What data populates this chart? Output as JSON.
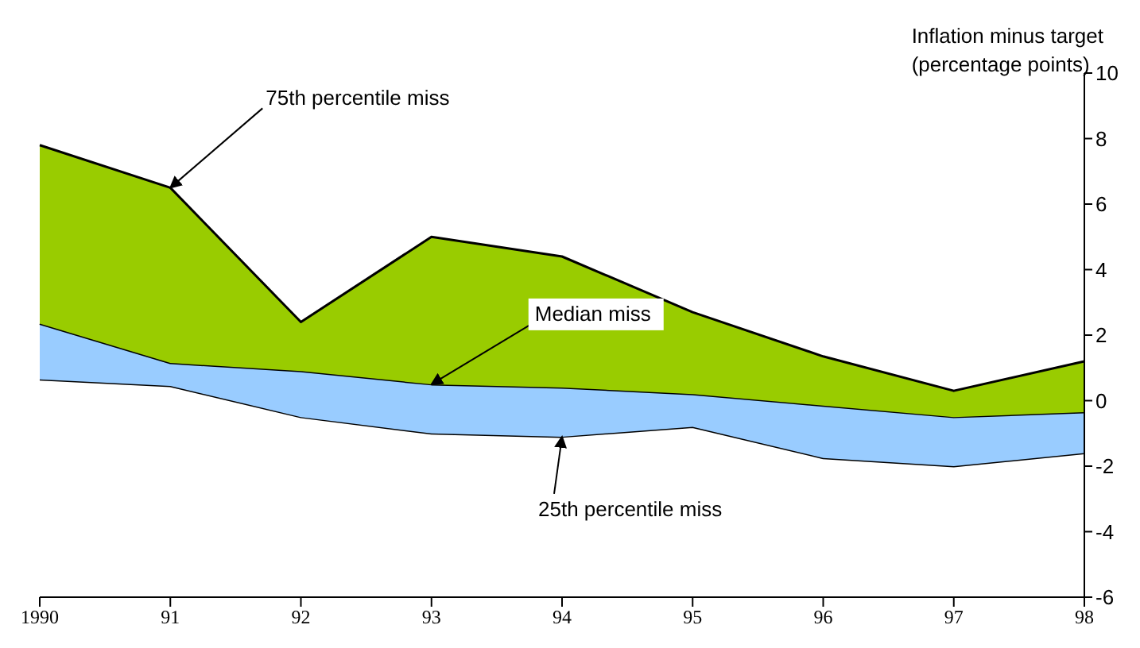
{
  "chart_data": {
    "type": "area",
    "stacked": true,
    "ylabel": "Inflation minus target\n(percentage points)",
    "categories": [
      "1990",
      "91",
      "92",
      "93",
      "94",
      "95",
      "96",
      "97",
      "98"
    ],
    "series": [
      {
        "color": "#ffffff",
        "values": [
          0.65,
          0.45,
          -0.5,
          -1.0,
          -1.1,
          -0.8,
          -1.75,
          -2.0,
          -1.6
        ]
      },
      {
        "color": "#99ccff",
        "values": [
          1.7,
          0.7,
          1.4,
          1.5,
          1.5,
          1.0,
          1.6,
          1.5,
          1.25
        ]
      },
      {
        "color": "#99cc00",
        "values": [
          5.45,
          5.35,
          1.5,
          4.5,
          4.0,
          2.5,
          1.5,
          0.8,
          1.55
        ]
      }
    ],
    "ylim": [
      -6,
      10
    ],
    "yticks": [
      -6,
      -4,
      -2,
      0,
      2,
      4,
      6,
      8,
      10
    ],
    "grid": false,
    "legend": false,
    "annotations": [
      {
        "text": "75th percentile miss",
        "x": "91",
        "y": 6.5
      },
      {
        "text": "Median miss",
        "x": "93",
        "y": 0.5
      },
      {
        "text": "25th percentile miss",
        "x": "94",
        "y": -1.1
      }
    ]
  }
}
